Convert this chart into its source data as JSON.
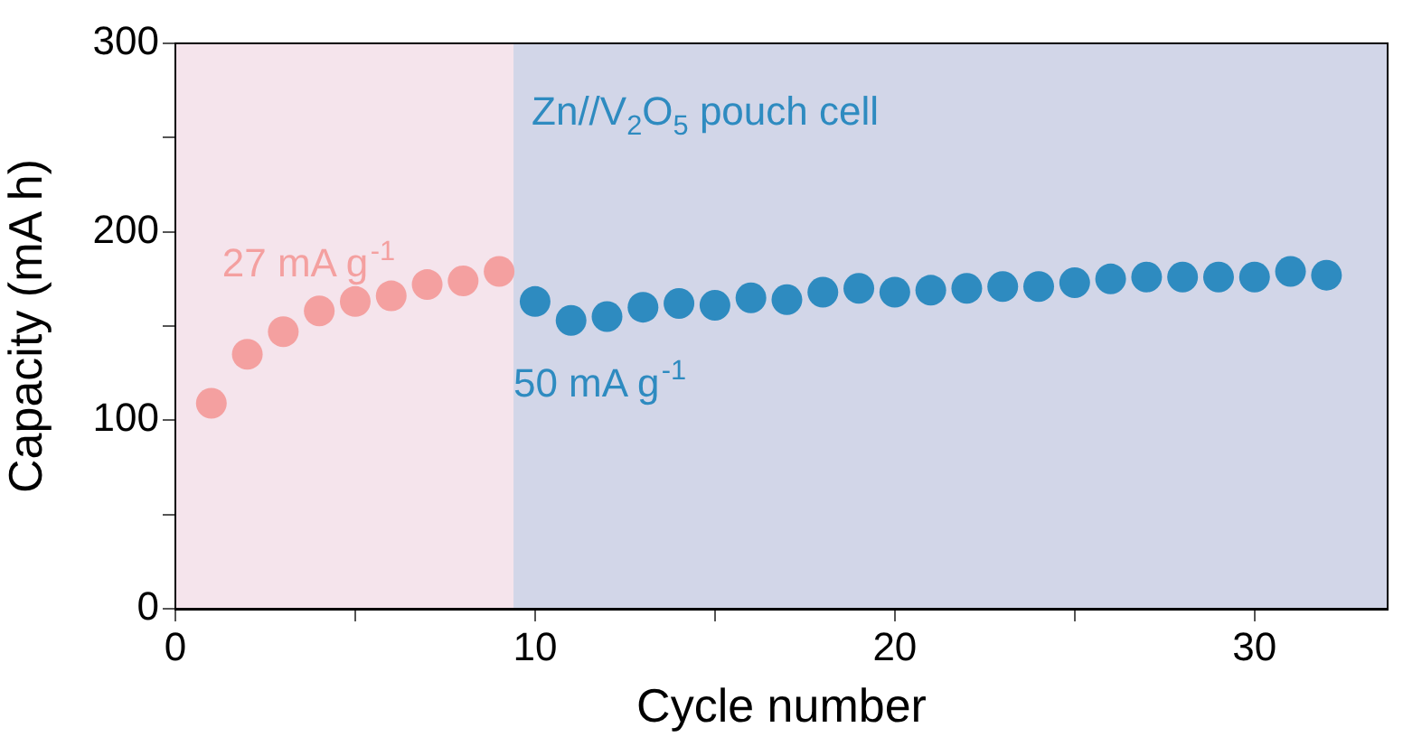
{
  "chart_data": {
    "type": "scatter",
    "xlabel": "Cycle number",
    "ylabel": "Capacity (mA h)",
    "xlim": [
      0,
      33.7
    ],
    "xticks": [
      0,
      {
        "value": 5,
        "label": null
      },
      10,
      {
        "value": 15,
        "label": null
      },
      20,
      {
        "value": 25,
        "label": null
      },
      30
    ],
    "ylim": [
      0,
      300
    ],
    "yticks": [
      0,
      {
        "value": 50,
        "label": null
      },
      100,
      {
        "value": 150,
        "label": null
      },
      200,
      {
        "value": 250,
        "label": null
      },
      300
    ],
    "grid": false,
    "legend": false,
    "marker": "circle",
    "bands": [
      {
        "axis": "x",
        "from": 0,
        "to": 9.4,
        "color": "#f5e4ec"
      },
      {
        "axis": "x",
        "from": 9.4,
        "to": 33.7,
        "color": "#d2d6e8"
      }
    ],
    "annotations": [
      "Zn//V$_{2}$O$_{5}$ pouch cell"
    ],
    "series": [
      {
        "name": "27 mA g$^{-1}$",
        "color": "#f4a0a0",
        "x": [
          1,
          2,
          3,
          4,
          5,
          6,
          7,
          8,
          9
        ],
        "values": [
          109,
          135,
          147,
          158,
          163,
          166,
          172,
          174,
          179
        ]
      },
      {
        "name": "50 mA g$^{-1}$",
        "color": "#2e8bc0",
        "x": [
          10,
          11,
          12,
          13,
          14,
          15,
          16,
          17,
          18,
          19,
          20,
          21,
          22,
          23,
          24,
          25,
          26,
          27,
          28,
          29,
          30,
          31,
          32
        ],
        "values": [
          163,
          153,
          155,
          160,
          162,
          161,
          165,
          164,
          168,
          170,
          168,
          169,
          170,
          171,
          171,
          173,
          175,
          176,
          176,
          176,
          176,
          179,
          177
        ]
      }
    ]
  }
}
